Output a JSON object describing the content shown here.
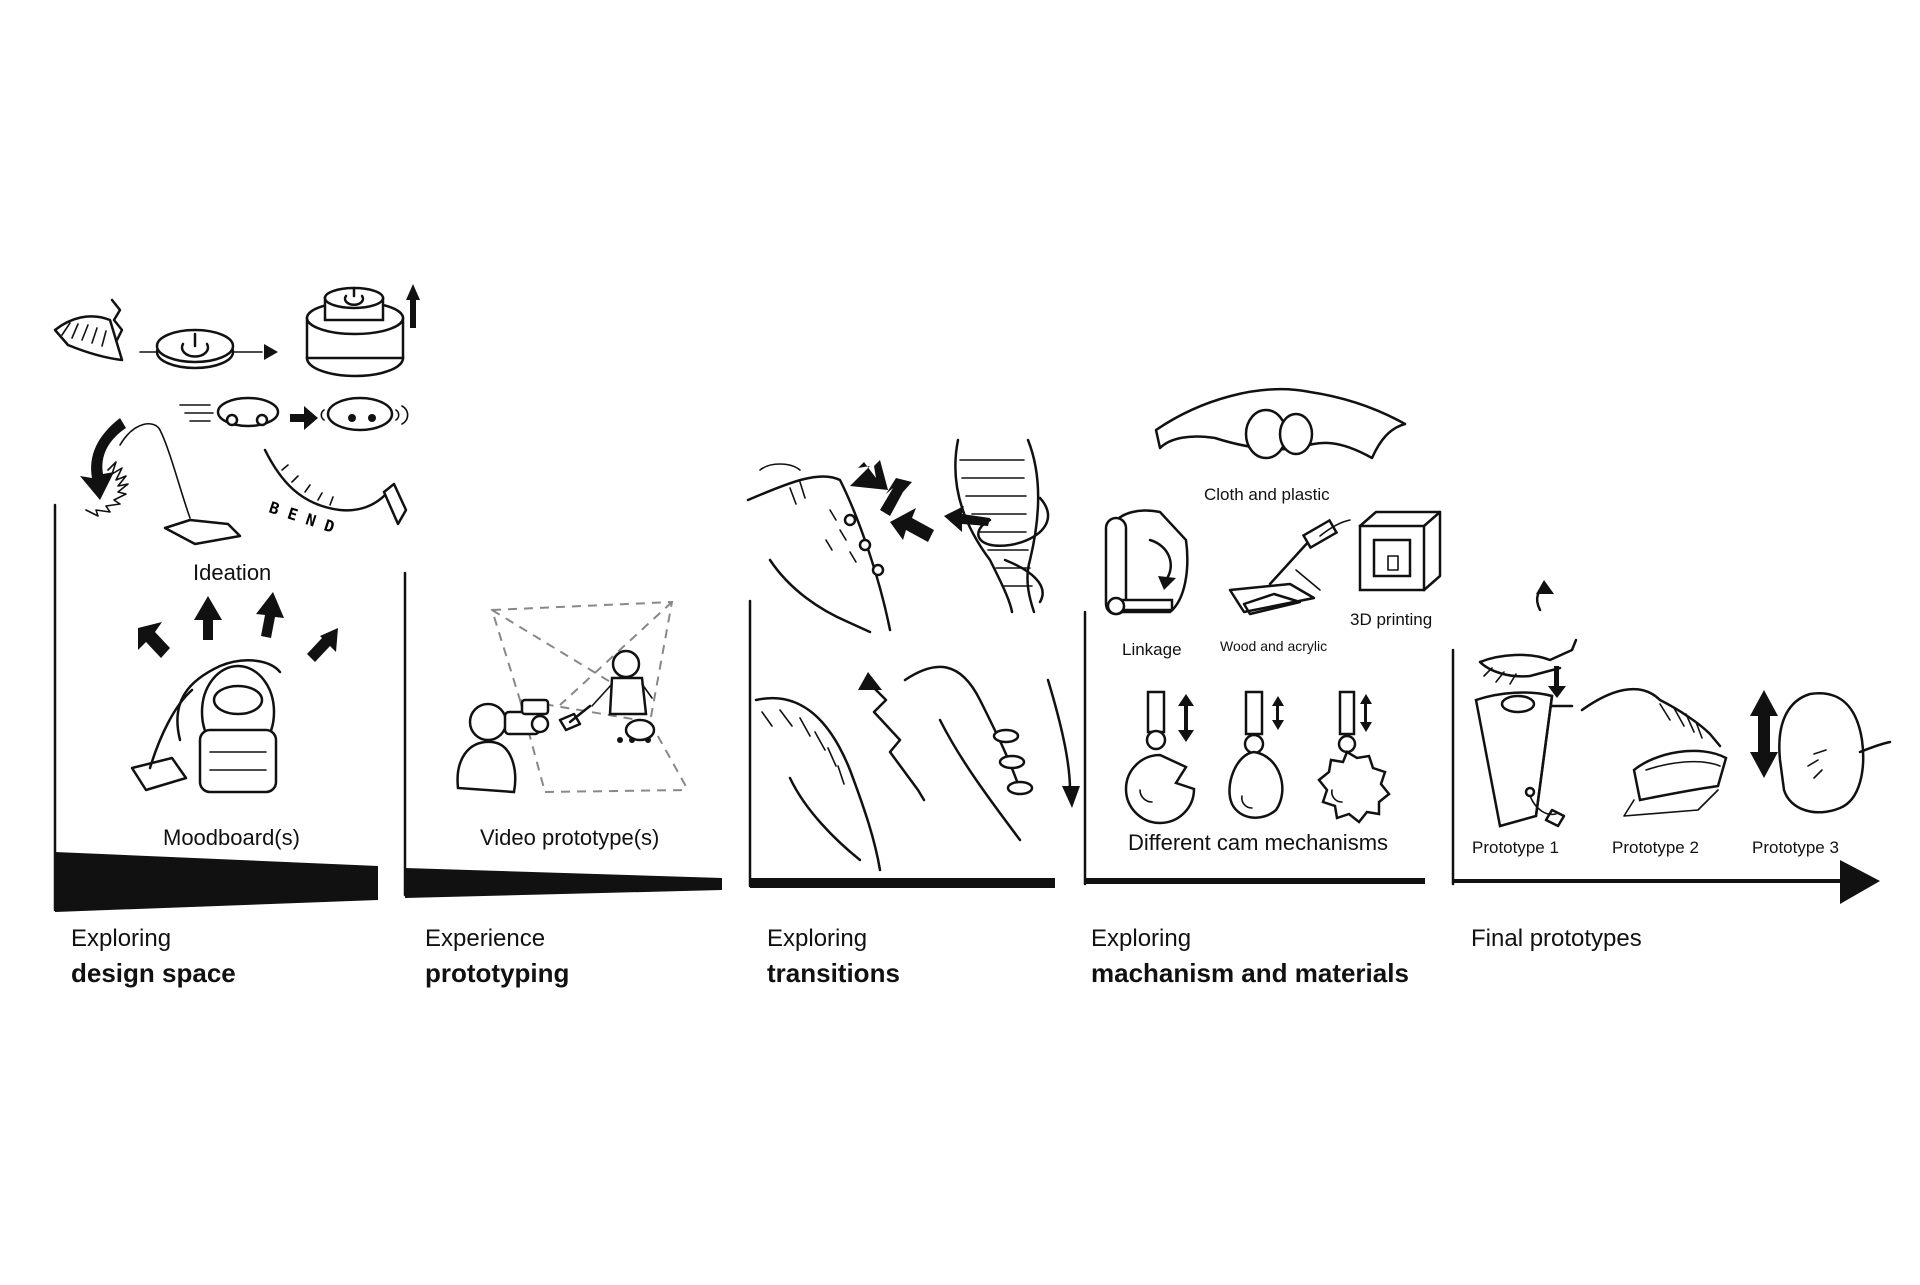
{
  "labels": {
    "ideation": "Ideation",
    "moodboard": "Moodboard(s)",
    "video_prototype": "Video prototype(s)",
    "cloth_plastic": "Cloth and plastic",
    "linkage": "Linkage",
    "wood_acrylic": "Wood and acrylic",
    "printing_3d": "3D printing",
    "cam_mechanisms": "Different cam mechanisms",
    "prototype_1": "Prototype 1",
    "prototype_2": "Prototype 2",
    "prototype_3": "Prototype 3"
  },
  "phases": [
    {
      "line1": "Exploring",
      "line2": "design space"
    },
    {
      "line1": "Experience",
      "line2": "prototyping"
    },
    {
      "line1": "Exploring",
      "line2": "transitions"
    },
    {
      "line1": "Exploring",
      "line2": "machanism and materials"
    },
    {
      "line1": "Final prototypes",
      "line2": ""
    }
  ],
  "colors": {
    "ink": "#111111",
    "dashed": "#888888",
    "background": "#ffffff"
  },
  "icons": [
    "vacuum-cleaner-icon",
    "power-button-icon",
    "robot-vacuum-icon",
    "camera-operator-icon",
    "bending-hose-icon",
    "cam-icon",
    "3d-printer-icon",
    "hand-icon"
  ]
}
